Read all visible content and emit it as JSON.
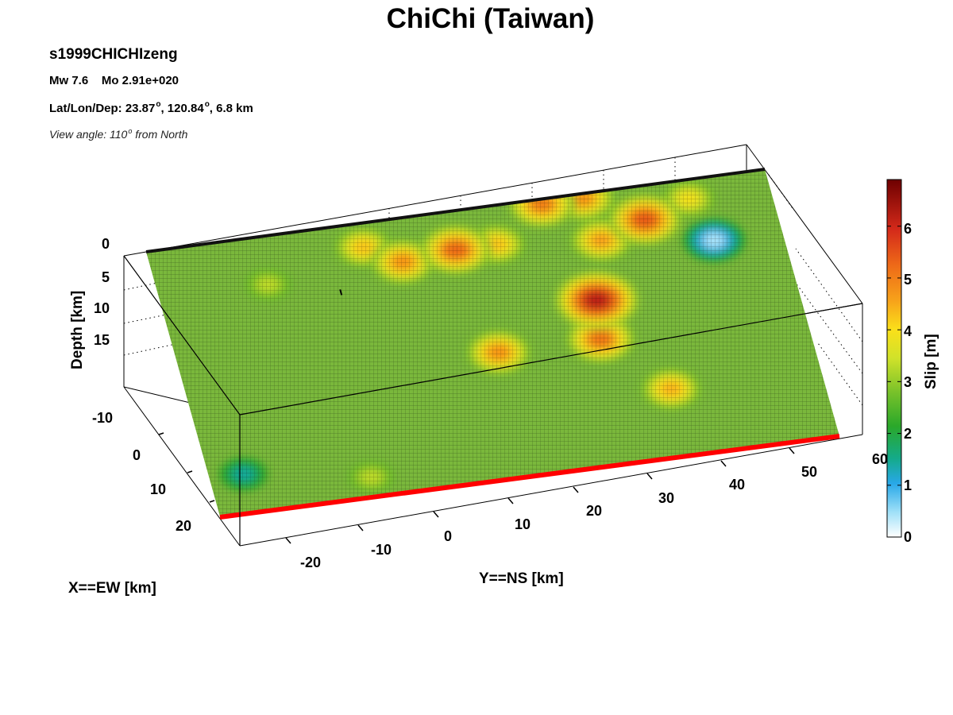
{
  "figure": {
    "title": "ChiChi (Taiwan)",
    "model_name": "s1999CHICHIzeng",
    "mw_text": "Mw 7.6    Mo 2.91e+020",
    "location_prefix": "Lat/Lon/Dep: 23.87",
    "location_mid": ", 120.84",
    "location_suffix": ", 6.8 km",
    "view_prefix": "View angle: 110",
    "view_suffix": " from North",
    "degree_mark": "o"
  },
  "chart_data": {
    "type": "surface3d",
    "title": "ChiChi (Taiwan)",
    "ylabel_depth": "Depth [km]",
    "xlabel_ew": "X==EW [km]",
    "ylabel_ns": "Y==NS [km]",
    "colorbar_label": "Slip [m]",
    "depth_ticks": [
      "0",
      "5",
      "10",
      "15"
    ],
    "ew_ticks": [
      "-10",
      "0",
      "10",
      "20"
    ],
    "ns_ticks": [
      "-20",
      "-10",
      "0",
      "10",
      "20",
      "30",
      "40",
      "50",
      "60"
    ],
    "colorbar_ticks": [
      "0",
      "1",
      "2",
      "3",
      "4",
      "5",
      "6"
    ],
    "colorbar_range": [
      0,
      6.9
    ],
    "background_slip": 2.5,
    "hypocenter": {
      "ns_km": -8,
      "depth_km": 6.8
    },
    "slip_patches": [
      {
        "ns_km": -3,
        "depth_km": 2.5,
        "slip_m": 4.6
      },
      {
        "ns_km": 2,
        "depth_km": 4.5,
        "slip_m": 5.2
      },
      {
        "ns_km": 10,
        "depth_km": 4,
        "slip_m": 5.8
      },
      {
        "ns_km": 16,
        "depth_km": 4,
        "slip_m": 4.6
      },
      {
        "ns_km": 24,
        "depth_km": 0.5,
        "slip_m": 5.5
      },
      {
        "ns_km": 30,
        "depth_km": 0.5,
        "slip_m": 5.2
      },
      {
        "ns_km": 31,
        "depth_km": 5,
        "slip_m": 5.0
      },
      {
        "ns_km": 38,
        "depth_km": 3.5,
        "slip_m": 6.0
      },
      {
        "ns_km": 28,
        "depth_km": 11,
        "slip_m": 6.9
      },
      {
        "ns_km": 27,
        "depth_km": 15,
        "slip_m": 5.6
      },
      {
        "ns_km": 12,
        "depth_km": 15,
        "slip_m": 5.2
      },
      {
        "ns_km": 35,
        "depth_km": 21,
        "slip_m": 4.8
      },
      {
        "ns_km": 45,
        "depth_km": 2,
        "slip_m": 4.2
      },
      {
        "ns_km": -18,
        "depth_km": 5,
        "slip_m": 3.5
      },
      {
        "ns_km": 47,
        "depth_km": 6.5,
        "slip_m": 0.0
      },
      {
        "ns_km": -29,
        "depth_km": 24,
        "slip_m": 1.2
      },
      {
        "ns_km": -11,
        "depth_km": 26,
        "slip_m": 3.5
      }
    ],
    "colors": {
      "surface_trace": "#ff0000",
      "top_edge": "#000000",
      "background_slip_color": "#7ab83c"
    }
  }
}
